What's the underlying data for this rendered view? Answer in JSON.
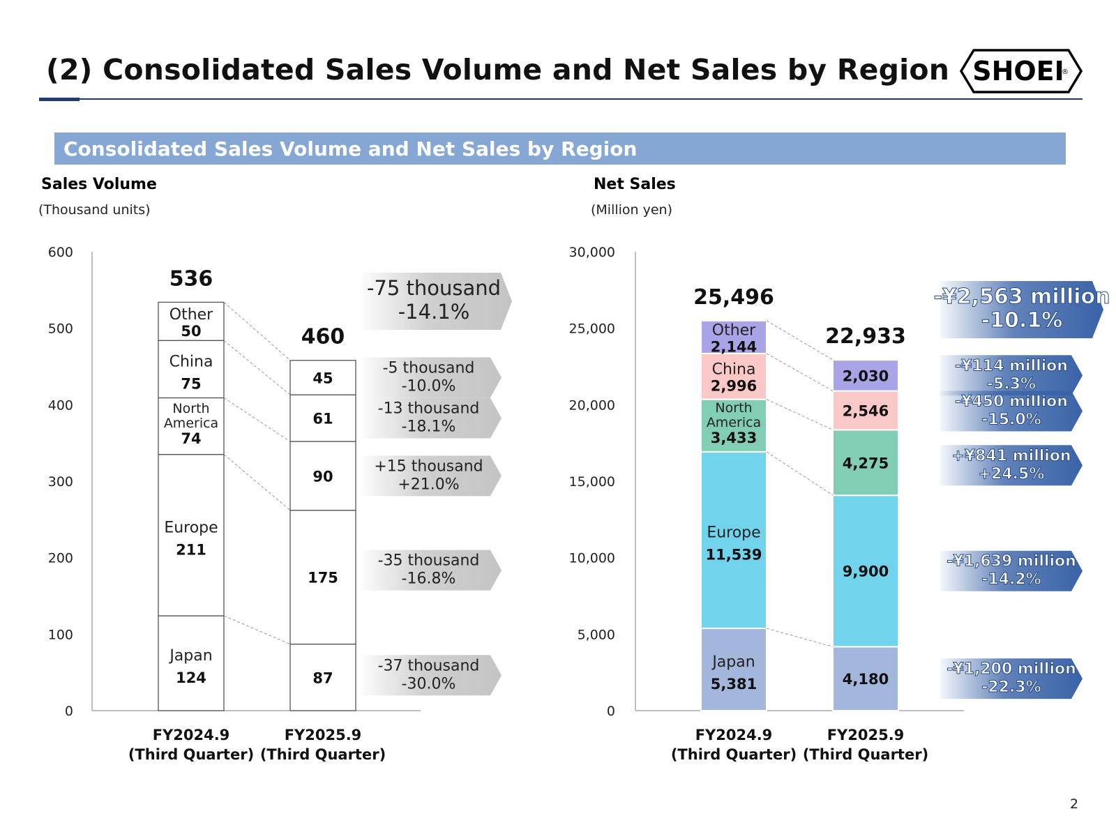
{
  "page": {
    "title": "(2) Consolidated Sales Volume and Net Sales by Region",
    "banner": "Consolidated Sales Volume and Net Sales by Region",
    "logo_text": "SHOEI",
    "logo_mark": "®",
    "page_number": "2"
  },
  "colors": {
    "title_rule": "#1f3b6e",
    "banner": "#86a6d3",
    "callout_gray": "#c4c4c4",
    "callout_blue": "#3a63a8",
    "japan": "#a3b6db",
    "europe": "#72d3ec",
    "north_america": "#82ceb5",
    "china": "#fbc8c8",
    "other": "#a9a4e8"
  },
  "chart_data": [
    {
      "type": "bar",
      "stacked": true,
      "title": "Sales Volume",
      "unit": "(Thousand units)",
      "categories": [
        "FY2024.9\n(Third Quarter)",
        "FY2025.9\n(Third Quarter)"
      ],
      "category_lines": [
        [
          "FY2024.9",
          "(Third Quarter)"
        ],
        [
          "FY2025.9",
          "(Third Quarter)"
        ]
      ],
      "ylim": [
        0,
        600
      ],
      "yticks": [
        "0",
        "100",
        "200",
        "300",
        "400",
        "500",
        "600"
      ],
      "totals": [
        "536",
        "460"
      ],
      "series": [
        {
          "name": "Japan",
          "lines": [
            "Japan"
          ],
          "values": [
            124,
            87
          ],
          "labels": [
            "124",
            "87"
          ],
          "change": [
            "-37 thousand",
            "-30.0%"
          ]
        },
        {
          "name": "Europe",
          "lines": [
            "Europe"
          ],
          "values": [
            211,
            175
          ],
          "labels": [
            "211",
            "175"
          ],
          "change": [
            "-35 thousand",
            "-16.8%"
          ]
        },
        {
          "name": "North America",
          "lines": [
            "North",
            "America"
          ],
          "values": [
            74,
            90
          ],
          "labels": [
            "74",
            "90"
          ],
          "change": [
            "+15 thousand",
            "+21.0%"
          ]
        },
        {
          "name": "China",
          "lines": [
            "China"
          ],
          "values": [
            75,
            61
          ],
          "labels": [
            "75",
            "61"
          ],
          "change": [
            "-13 thousand",
            "-18.1%"
          ]
        },
        {
          "name": "Other",
          "lines": [
            "Other"
          ],
          "values": [
            50,
            45
          ],
          "labels": [
            "50",
            "45"
          ],
          "change": [
            "-5 thousand",
            "-10.0%"
          ]
        }
      ],
      "total_change": [
        "-75 thousand",
        "-14.1%"
      ]
    },
    {
      "type": "bar",
      "stacked": true,
      "title": "Net Sales",
      "unit": "(Million yen)",
      "categories": [
        "FY2024.9\n(Third Quarter)",
        "FY2025.9\n(Third Quarter)"
      ],
      "category_lines": [
        [
          "FY2024.9",
          "(Third Quarter)"
        ],
        [
          "FY2025.9",
          "(Third Quarter)"
        ]
      ],
      "ylim": [
        0,
        30000
      ],
      "yticks": [
        "0",
        "5,000",
        "10,000",
        "15,000",
        "20,000",
        "25,000",
        "30,000"
      ],
      "totals": [
        "25,496",
        "22,933"
      ],
      "series": [
        {
          "name": "Japan",
          "lines": [
            "Japan"
          ],
          "values": [
            5381,
            4180
          ],
          "labels": [
            "5,381",
            "4,180"
          ],
          "change": [
            "-¥1,200 million",
            "-22.3%"
          ]
        },
        {
          "name": "Europe",
          "lines": [
            "Europe"
          ],
          "values": [
            11539,
            9900
          ],
          "labels": [
            "11,539",
            "9,900"
          ],
          "change": [
            "-¥1,639 million",
            "-14.2%"
          ]
        },
        {
          "name": "North America",
          "lines": [
            "North",
            "America"
          ],
          "values": [
            3433,
            4275
          ],
          "labels": [
            "3,433",
            "4,275"
          ],
          "change": [
            "+¥841 million",
            "+24.5%"
          ]
        },
        {
          "name": "China",
          "lines": [
            "China"
          ],
          "values": [
            2996,
            2546
          ],
          "labels": [
            "2,996",
            "2,546"
          ],
          "change": [
            "-¥450 million",
            "-15.0%"
          ]
        },
        {
          "name": "Other",
          "lines": [
            "Other"
          ],
          "values": [
            2144,
            2030
          ],
          "labels": [
            "2,144",
            "2,030"
          ],
          "change": [
            "-¥114 million",
            "-5.3%"
          ]
        }
      ],
      "total_change": [
        "-¥2,563 million",
        "-10.1%"
      ]
    }
  ]
}
